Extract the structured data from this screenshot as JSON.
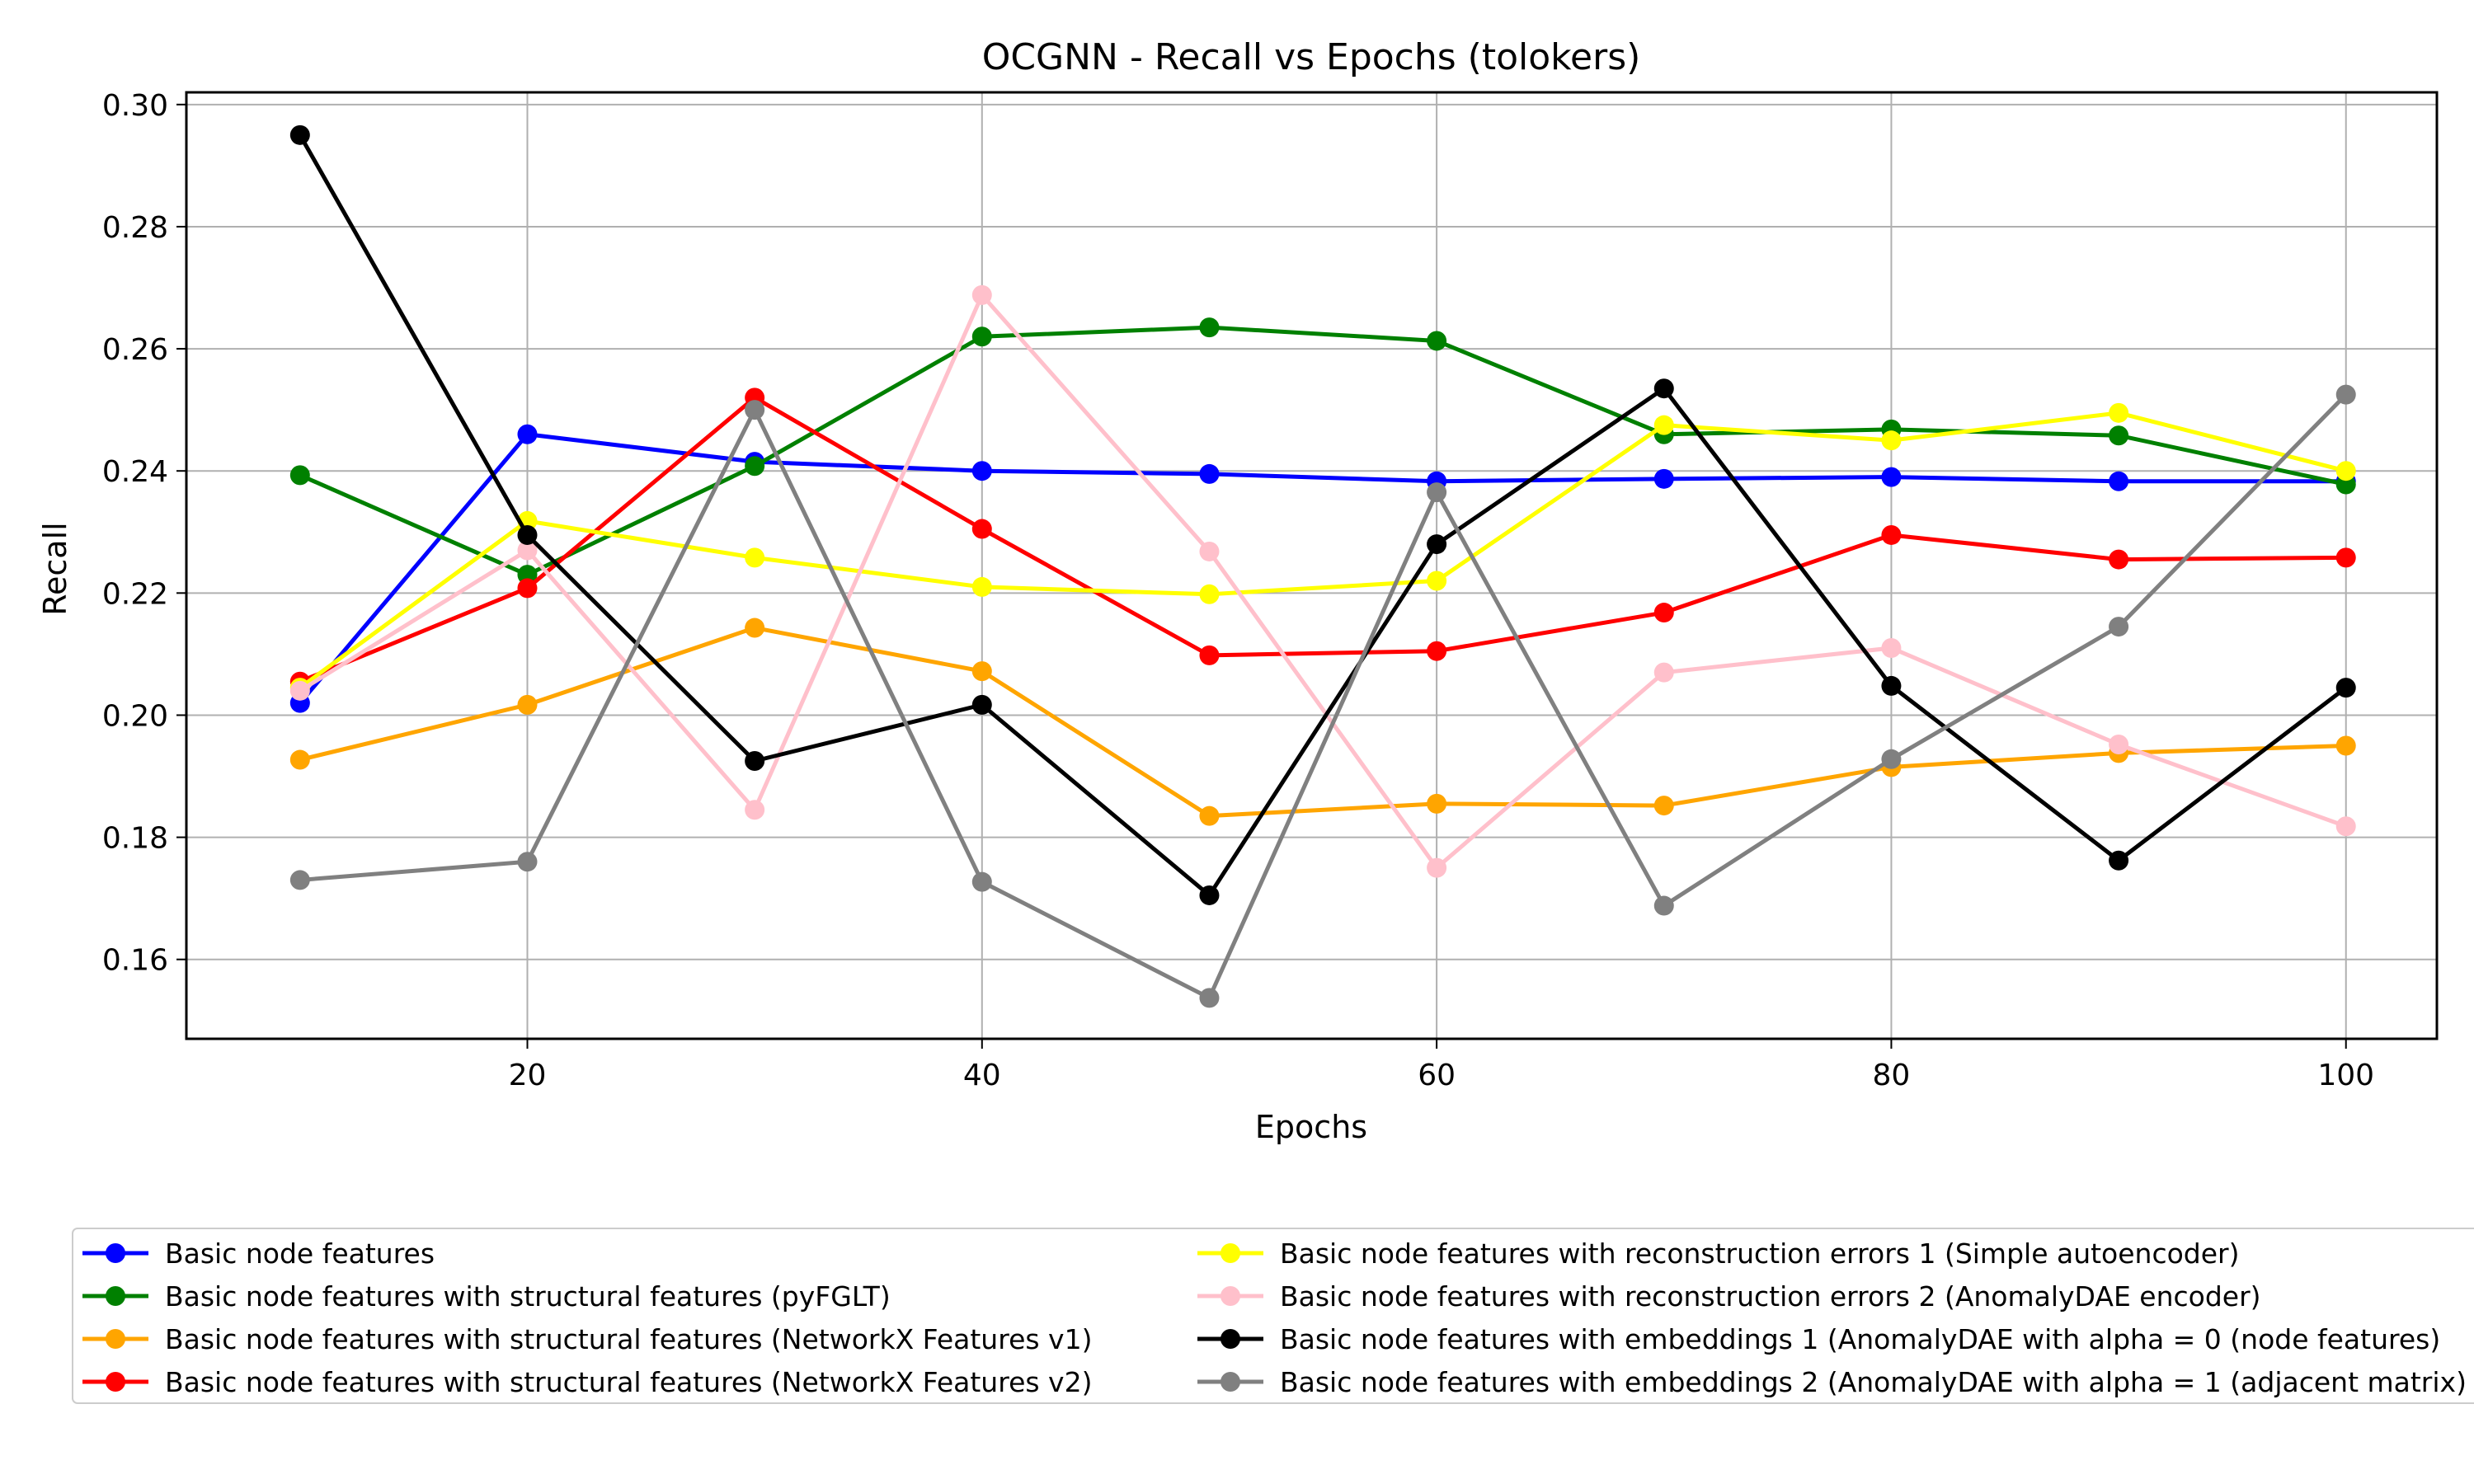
{
  "chart_data": {
    "type": "line",
    "title": "OCGNN - Recall vs Epochs (tolokers)",
    "xlabel": "Epochs",
    "ylabel": "Recall",
    "xlim": [
      5,
      104
    ],
    "ylim": [
      0.147,
      0.302
    ],
    "xticks": [
      20,
      40,
      60,
      80,
      100
    ],
    "yticks": [
      0.16,
      0.18,
      0.2,
      0.22,
      0.24,
      0.26,
      0.28,
      0.3
    ],
    "ytick_labels": [
      "0.16",
      "0.18",
      "0.20",
      "0.22",
      "0.24",
      "0.26",
      "0.28",
      "0.30"
    ],
    "grid": true,
    "legend_position": "below plot, two columns",
    "x": [
      10,
      20,
      30,
      40,
      50,
      60,
      70,
      80,
      90,
      100
    ],
    "series": [
      {
        "name": "Basic node features",
        "color": "#0000ff",
        "values": [
          0.202,
          0.246,
          0.2415,
          0.24,
          0.2395,
          0.2383,
          0.2387,
          0.239,
          0.2383,
          0.2383
        ]
      },
      {
        "name": "Basic node features with structural features (pyFGLT)",
        "color": "#008000",
        "values": [
          0.2393,
          0.223,
          0.2408,
          0.262,
          0.2635,
          0.2613,
          0.246,
          0.2468,
          0.2458,
          0.2378
        ]
      },
      {
        "name": "Basic node features with structural features (NetworkX Features v1)",
        "color": "#ffa500",
        "values": [
          0.1927,
          0.2017,
          0.2143,
          0.2072,
          0.1835,
          0.1855,
          0.1852,
          0.1915,
          0.1938,
          0.195
        ]
      },
      {
        "name": "Basic node features with structural features (NetworkX Features v2)",
        "color": "#ff0000",
        "values": [
          0.2055,
          0.2208,
          0.252,
          0.2305,
          0.2098,
          0.2105,
          0.2168,
          0.2295,
          0.2255,
          0.2258
        ]
      },
      {
        "name": "Basic node features with reconstruction errors 1 (Simple autoencoder)",
        "color": "#ffff00",
        "values": [
          0.2045,
          0.2318,
          0.2258,
          0.221,
          0.2198,
          0.222,
          0.2475,
          0.245,
          0.2495,
          0.24
        ]
      },
      {
        "name": "Basic node features with reconstruction errors 2 (AnomalyDAE encoder)",
        "color": "#ffc0cb",
        "values": [
          0.204,
          0.227,
          0.1845,
          0.2688,
          0.2268,
          0.175,
          0.207,
          0.211,
          0.1952,
          0.1818
        ]
      },
      {
        "name": "Basic node features with embeddings 1 (AnomalyDAE with alpha = 0 (node features)",
        "color": "#000000",
        "values": [
          0.295,
          0.2295,
          0.1925,
          0.2017,
          0.1705,
          0.228,
          0.2535,
          0.2048,
          0.1762,
          0.2045
        ]
      },
      {
        "name": "Basic node features with embeddings 2 (AnomalyDAE with alpha = 1 (adjacent matrix)",
        "color": "#808080",
        "values": [
          0.173,
          0.176,
          0.25,
          0.1727,
          0.1537,
          0.2365,
          0.1688,
          0.1928,
          0.2145,
          0.2525
        ]
      }
    ]
  }
}
